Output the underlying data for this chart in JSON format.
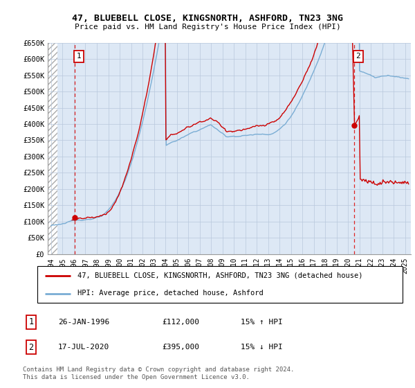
{
  "title1": "47, BLUEBELL CLOSE, KINGSNORTH, ASHFORD, TN23 3NG",
  "title2": "Price paid vs. HM Land Registry's House Price Index (HPI)",
  "ylim": [
    0,
    650000
  ],
  "yticks": [
    0,
    50000,
    100000,
    150000,
    200000,
    250000,
    300000,
    350000,
    400000,
    450000,
    500000,
    550000,
    600000,
    650000
  ],
  "ytick_labels": [
    "£0",
    "£50K",
    "£100K",
    "£150K",
    "£200K",
    "£250K",
    "£300K",
    "£350K",
    "£400K",
    "£450K",
    "£500K",
    "£550K",
    "£600K",
    "£650K"
  ],
  "xlim_start": 1993.7,
  "xlim_end": 2025.5,
  "xtick_years": [
    1994,
    1995,
    1996,
    1997,
    1998,
    1999,
    2000,
    2001,
    2002,
    2003,
    2004,
    2005,
    2006,
    2007,
    2008,
    2009,
    2010,
    2011,
    2012,
    2013,
    2014,
    2015,
    2016,
    2017,
    2018,
    2019,
    2020,
    2021,
    2022,
    2023,
    2024,
    2025
  ],
  "sale1_x": 1996.07,
  "sale1_y": 112000,
  "sale1_label": "1",
  "sale2_x": 2020.54,
  "sale2_y": 395000,
  "sale2_label": "2",
  "legend_line1": "47, BLUEBELL CLOSE, KINGSNORTH, ASHFORD, TN23 3NG (detached house)",
  "legend_line2": "HPI: Average price, detached house, Ashford",
  "table_row1": [
    "1",
    "26-JAN-1996",
    "£112,000",
    "15% ↑ HPI"
  ],
  "table_row2": [
    "2",
    "17-JUL-2020",
    "£395,000",
    "15% ↓ HPI"
  ],
  "footer": "Contains HM Land Registry data © Crown copyright and database right 2024.\nThis data is licensed under the Open Government Licence v3.0.",
  "hpi_color": "#7aadd4",
  "price_color": "#cc0000",
  "bg_color": "#dde8f5",
  "grid_color": "#b8c8dc",
  "dashed_line_color": "#dd2222",
  "hatch_start": 1993.7,
  "hatch_end": 1994.55
}
